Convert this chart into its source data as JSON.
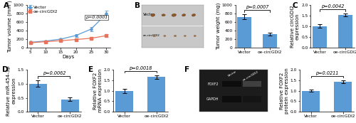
{
  "panel_A": {
    "days": [
      5,
      10,
      15,
      20,
      25,
      30
    ],
    "vector_mean": [
      120,
      150,
      195,
      280,
      430,
      790
    ],
    "vector_err": [
      15,
      18,
      22,
      35,
      55,
      75
    ],
    "oe_mean": [
      110,
      135,
      158,
      185,
      215,
      275
    ],
    "oe_err": [
      10,
      13,
      16,
      20,
      25,
      32
    ],
    "vector_color": "#5B9BD5",
    "oe_color": "#E8735A",
    "ylabel": "Tumor volume (mm³)",
    "xlabel": "Days",
    "pvalue": "p=0.0001",
    "legend": [
      "Vector",
      "oe-circGDI2"
    ],
    "ylim": [
      0,
      1000
    ],
    "yticks": [
      0,
      200,
      400,
      600,
      800,
      1000
    ]
  },
  "panel_B_bar": {
    "categories": [
      "Vector",
      "oe-circGDI2"
    ],
    "means": [
      720,
      310
    ],
    "errors": [
      55,
      38
    ],
    "bar_color": "#5B9BD5",
    "ylabel": "Tumor weight (mg)",
    "pvalue": "p=0.0007",
    "ylim": [
      0,
      1000
    ],
    "yticks": [
      0,
      200,
      400,
      600,
      800,
      1000
    ]
  },
  "panel_C": {
    "categories": [
      "Vector",
      "oe-circGDI2"
    ],
    "means": [
      1.0,
      1.52
    ],
    "errors": [
      0.09,
      0.07
    ],
    "bar_color": "#5B9BD5",
    "ylabel": "Relative circGDI2\nexpression",
    "pvalue": "p=0.0042",
    "ylim": [
      0,
      2.0
    ],
    "yticks": [
      0.0,
      0.5,
      1.0,
      1.5,
      2.0
    ]
  },
  "panel_D": {
    "categories": [
      "Vector",
      "oe-circGDI2"
    ],
    "means": [
      1.0,
      0.45
    ],
    "errors": [
      0.11,
      0.07
    ],
    "bar_color": "#5B9BD5",
    "ylabel": "Relative miR-454-3p\nexpression",
    "pvalue": "p=0.0062",
    "ylim": [
      0,
      1.5
    ],
    "yticks": [
      0.0,
      0.5,
      1.0,
      1.5
    ]
  },
  "panel_E": {
    "categories": [
      "Vector",
      "oe-circGDI2"
    ],
    "means": [
      1.0,
      1.65
    ],
    "errors": [
      0.1,
      0.08
    ],
    "bar_color": "#5B9BD5",
    "ylabel": "Relative FOXF2\nmRNA expression",
    "pvalue": "p=0.0018",
    "ylim": [
      0,
      2.0
    ],
    "yticks": [
      0.0,
      0.5,
      1.0,
      1.5,
      2.0
    ]
  },
  "panel_F_bar": {
    "categories": [
      "Vector",
      "oe-circGDI2"
    ],
    "means": [
      1.0,
      1.42
    ],
    "errors": [
      0.06,
      0.07
    ],
    "bar_color": "#5B9BD5",
    "ylabel": "Relative FOXF2\nprotein expression",
    "pvalue": "p=0.0211",
    "ylim": [
      0,
      2.0
    ],
    "yticks": [
      0.0,
      0.5,
      1.0,
      1.5,
      2.0
    ]
  },
  "tumor_img_bg": "#c8c8c8",
  "tumor_color": "#A0522D",
  "wb_bg": "#222222",
  "wb_band_colors": [
    "#111111",
    "#333333"
  ],
  "background_color": "#ffffff",
  "label_fontsize": 5.0,
  "tick_fontsize": 4.2,
  "panel_label_fontsize": 7.5
}
